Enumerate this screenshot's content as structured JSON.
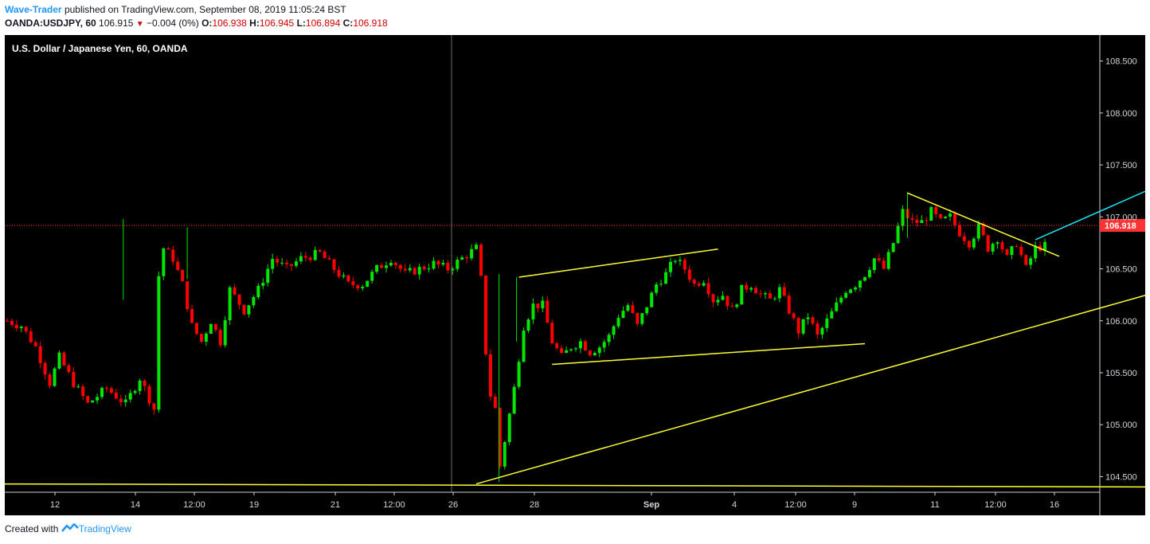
{
  "header": {
    "author": "Wave-Trader",
    "published_text": "published on TradingView.com, September 08, 2019 11:05:24 BST",
    "symbol": "OANDA:USDJPY, 60",
    "last": "106.915",
    "change": "−0.004 (0%)",
    "o_label": "O:",
    "o_value": "106.938",
    "h_label": "H:",
    "h_value": "106.945",
    "l_label": "L:",
    "l_value": "106.894",
    "c_label": "C:",
    "c_value": "106.918"
  },
  "footer": {
    "created_with": "Created with",
    "brand": "TradingView"
  },
  "chart_data": {
    "type": "candlestick",
    "title": "U.S. Dollar / Japanese Yen, 60, OANDA",
    "ylim": [
      104.35,
      108.75
    ],
    "y_ticks": [
      "104.500",
      "105.000",
      "105.500",
      "106.000",
      "106.500",
      "107.000",
      "107.500",
      "108.000",
      "108.500"
    ],
    "x_ticks": [
      "12",
      "14",
      "12:00",
      "19",
      "21",
      "12:00",
      "26",
      "28",
      "Sep",
      "4",
      "12:00",
      "9",
      "11",
      "12:00",
      "16"
    ],
    "current_price_label": "106.918",
    "current_price": 106.918,
    "colors": {
      "up": "#00e600",
      "down": "#ff0000",
      "trendline": "#ffff33",
      "target": "#1fe0f0",
      "background": "#000000",
      "price_line": "#ff3333"
    },
    "price_path": [
      [
        0,
        106.0
      ],
      [
        3,
        105.95
      ],
      [
        6,
        105.75
      ],
      [
        9,
        105.4
      ],
      [
        11,
        105.65
      ],
      [
        14,
        105.4
      ],
      [
        17,
        105.2
      ],
      [
        21,
        105.35
      ],
      [
        25,
        105.2
      ],
      [
        28,
        105.45
      ],
      [
        31,
        105.15
      ],
      [
        31.5,
        106.3
      ],
      [
        33,
        106.7
      ],
      [
        35,
        106.6
      ],
      [
        37,
        106.35
      ],
      [
        39,
        105.95
      ],
      [
        41,
        105.8
      ],
      [
        43,
        106.0
      ],
      [
        45,
        105.8
      ],
      [
        47,
        106.3
      ],
      [
        50,
        106.1
      ],
      [
        53,
        106.3
      ],
      [
        56,
        106.6
      ],
      [
        59,
        106.5
      ],
      [
        62,
        106.6
      ],
      [
        66,
        106.65
      ],
      [
        69,
        106.5
      ],
      [
        72,
        106.35
      ],
      [
        75,
        106.35
      ],
      [
        78,
        106.5
      ],
      [
        81,
        106.6
      ],
      [
        84,
        106.45
      ],
      [
        87,
        106.5
      ],
      [
        90,
        106.55
      ],
      [
        93,
        106.5
      ],
      [
        96,
        106.6
      ],
      [
        99,
        106.7
      ],
      [
        100,
        106.4
      ],
      [
        101.5,
        105.35
      ],
      [
        103,
        105.15
      ],
      [
        104,
        104.6
      ],
      [
        105,
        104.85
      ],
      [
        107,
        105.35
      ],
      [
        109,
        105.95
      ],
      [
        111,
        106.15
      ],
      [
        113,
        106.15
      ],
      [
        115,
        105.8
      ],
      [
        117,
        105.65
      ],
      [
        119,
        105.75
      ],
      [
        121,
        105.8
      ],
      [
        123,
        105.7
      ],
      [
        125,
        105.75
      ],
      [
        127,
        105.85
      ],
      [
        129,
        106.05
      ],
      [
        131,
        106.15
      ],
      [
        133,
        105.95
      ],
      [
        135,
        106.15
      ],
      [
        137,
        106.35
      ],
      [
        139,
        106.45
      ],
      [
        141,
        106.6
      ],
      [
        143,
        106.5
      ],
      [
        145,
        106.35
      ],
      [
        147,
        106.4
      ],
      [
        149,
        106.2
      ],
      [
        151,
        106.25
      ],
      [
        153,
        106.1
      ],
      [
        155,
        106.3
      ],
      [
        157,
        106.35
      ],
      [
        159,
        106.25
      ],
      [
        161,
        106.2
      ],
      [
        163,
        106.3
      ],
      [
        165,
        106.1
      ],
      [
        167,
        105.9
      ],
      [
        169,
        106.05
      ],
      [
        171,
        105.85
      ],
      [
        173,
        106.0
      ],
      [
        175,
        106.15
      ],
      [
        177,
        106.3
      ],
      [
        179,
        106.35
      ],
      [
        181,
        106.45
      ],
      [
        183,
        106.6
      ],
      [
        185,
        106.5
      ],
      [
        187,
        106.75
      ],
      [
        189,
        107.05
      ],
      [
        191,
        106.95
      ],
      [
        193,
        106.95
      ],
      [
        195,
        107.05
      ],
      [
        197,
        106.95
      ],
      [
        199,
        107.0
      ],
      [
        201,
        106.85
      ],
      [
        203,
        106.75
      ],
      [
        205,
        106.9
      ],
      [
        207,
        106.7
      ],
      [
        209,
        106.8
      ],
      [
        211,
        106.6
      ],
      [
        213,
        106.75
      ],
      [
        215,
        106.5
      ],
      [
        217,
        106.7
      ],
      [
        219,
        106.72
      ]
    ],
    "trendlines": [
      {
        "name": "base-support",
        "x1": -2,
        "y1": 104.43,
        "x2": 330,
        "y2": 104.39,
        "color": "#ffff33"
      },
      {
        "name": "rising-support",
        "x1": 99,
        "y1": 104.43,
        "x2": 330,
        "y2": 107.4,
        "color": "#ffff33"
      },
      {
        "name": "channel-upper",
        "x1": 108,
        "y1": 106.42,
        "x2": 150,
        "y2": 106.69,
        "color": "#ffff33"
      },
      {
        "name": "channel-lower",
        "x1": 115,
        "y1": 105.58,
        "x2": 181,
        "y2": 105.78,
        "color": "#ffff33"
      },
      {
        "name": "wedge-top",
        "x1": 190,
        "y1": 107.23,
        "x2": 222,
        "y2": 106.62,
        "color": "#ffff33"
      },
      {
        "name": "breakout-projection",
        "x1": 217,
        "y1": 106.78,
        "x2": 315,
        "y2": 108.75,
        "color": "#1fe0f0"
      }
    ]
  }
}
